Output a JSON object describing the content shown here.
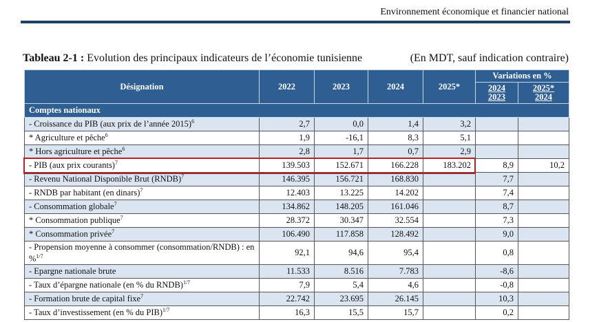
{
  "header": {
    "text": "Environnement économique et financier national"
  },
  "table": {
    "title_prefix": "Tableau 2-1 :",
    "title": "Evolution des principaux indicateurs de l’économie tunisienne",
    "unit_note": "(En MDT, sauf indication contraire)",
    "columns": {
      "designation": "Désignation",
      "years": [
        "2022",
        "2023",
        "2024",
        "2025*"
      ],
      "variations": "Variations en %",
      "variation_cols": [
        {
          "top": "2024",
          "bottom": "2023"
        },
        {
          "top": "2025*",
          "bottom": "2024"
        }
      ]
    },
    "section": "Comptes nationaux",
    "rows": [
      {
        "label": "- Croissance du PIB (aux prix de l’année 2015)",
        "sup": "6",
        "cells": [
          "2,7",
          "0,0",
          "1,4",
          "3,2",
          null,
          null
        ]
      },
      {
        "label": "* Agriculture et pêche",
        "sup": "6",
        "cells": [
          "1,9",
          "-16,1",
          "8,3",
          "5,1",
          null,
          null
        ]
      },
      {
        "label": "* Hors agriculture et pêche",
        "sup": "6",
        "cells": [
          "2,8",
          "1,7",
          "0,7",
          "2,9",
          null,
          null
        ]
      },
      {
        "label": "- PIB (aux prix courants)",
        "sup": "7",
        "cells": [
          "139.503",
          "152.671",
          "166.228",
          "183.202",
          "8,9",
          "10,2"
        ],
        "highlighted": true
      },
      {
        "label": "- Revenu National Disponible Brut (RNDB)",
        "sup": "7",
        "cells": [
          "146.395",
          "156.721",
          "168.830",
          null,
          "7,7",
          null
        ]
      },
      {
        "label": "- RNDB par habitant (en dinars)",
        "sup": "7",
        "cells": [
          "12.403",
          "13.225",
          "14.202",
          null,
          "7,4",
          null
        ]
      },
      {
        "label": "- Consommation globale",
        "sup": "7",
        "cells": [
          "134.862",
          "148.205",
          "161.046",
          null,
          "8,7",
          null
        ]
      },
      {
        "label": "* Consommation publique",
        "sup": "7",
        "cells": [
          "28.372",
          "30.347",
          "32.554",
          null,
          "7,3",
          null
        ]
      },
      {
        "label": "* Consommation privée",
        "sup": "7",
        "cells": [
          "106.490",
          "117.858",
          "128.492",
          null,
          "9,0",
          null
        ]
      },
      {
        "label": "- Propension moyenne à consommer (consommation/RNDB) : en %",
        "sup": "1/7",
        "cells": [
          "92,1",
          "94,6",
          "95,4",
          null,
          "0,8",
          null
        ]
      },
      {
        "label": "- Epargne nationale brute",
        "cells": [
          "11.533",
          "8.516",
          "7.783",
          null,
          "-8,6",
          null
        ]
      },
      {
        "label": "- Taux d’épargne nationale (en % du RNDB)",
        "sup": "1/7",
        "cells": [
          "7,9",
          "5,4",
          "4,6",
          null,
          "-0,8",
          null
        ]
      },
      {
        "label": "- Formation brute de capital fixe",
        "sup": "7",
        "cells": [
          "22.742",
          "23.695",
          "26.145",
          null,
          "10,3",
          null
        ]
      },
      {
        "label": "- Taux d’investissement (en % du PIB)",
        "sup": "1/7",
        "cells": [
          "16,3",
          "15,5",
          "15,7",
          null,
          "0,2",
          null
        ]
      }
    ]
  }
}
